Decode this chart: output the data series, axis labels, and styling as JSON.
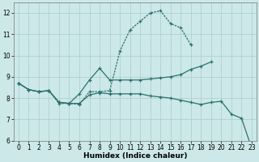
{
  "background_color": "#cce8e8",
  "grid_color": "#aacccc",
  "line_color": "#2d7070",
  "xlabel": "Humidex (Indice chaleur)",
  "xlim": [
    -0.5,
    23.5
  ],
  "ylim": [
    6,
    12.5
  ],
  "yticks": [
    6,
    7,
    8,
    9,
    10,
    11,
    12
  ],
  "xticks": [
    0,
    1,
    2,
    3,
    4,
    5,
    6,
    7,
    8,
    9,
    10,
    11,
    12,
    13,
    14,
    15,
    16,
    17,
    18,
    19,
    20,
    21,
    22,
    23
  ],
  "line1_x": [
    0,
    1,
    2,
    3,
    4,
    5,
    6,
    7,
    8,
    9,
    10,
    11,
    12,
    13,
    14,
    15,
    16,
    17,
    18,
    19
  ],
  "line1_y": [
    8.7,
    8.4,
    8.3,
    8.35,
    7.8,
    7.75,
    8.2,
    8.85,
    9.4,
    8.85,
    8.85,
    8.85,
    8.85,
    8.9,
    8.95,
    9.0,
    9.1,
    9.35,
    9.5,
    9.7
  ],
  "line2_x": [
    0,
    1,
    2,
    3,
    4,
    5,
    6,
    7,
    8,
    9,
    10,
    11,
    12,
    13,
    14,
    15,
    16,
    17
  ],
  "line2_y": [
    8.7,
    8.4,
    8.3,
    8.35,
    7.75,
    7.75,
    7.7,
    8.3,
    8.3,
    8.35,
    10.2,
    11.2,
    11.6,
    12.0,
    12.1,
    11.5,
    11.3,
    10.5
  ],
  "line3_x": [
    0,
    1,
    2,
    3,
    4,
    5,
    6,
    7,
    8,
    9,
    10,
    11,
    12,
    13,
    14,
    15,
    16,
    17,
    18,
    19,
    20,
    21,
    22,
    23
  ],
  "line3_y": [
    8.7,
    8.4,
    8.3,
    8.35,
    7.8,
    7.75,
    7.75,
    8.15,
    8.25,
    8.2,
    8.2,
    8.2,
    8.2,
    8.1,
    8.05,
    8.0,
    7.9,
    7.8,
    7.7,
    7.8,
    7.85,
    7.25,
    7.05,
    5.65
  ]
}
